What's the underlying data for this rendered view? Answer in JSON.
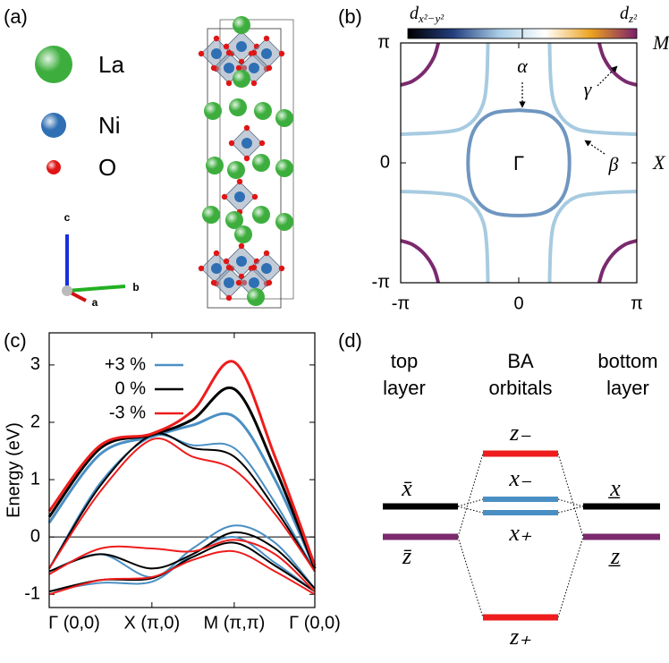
{
  "panels": {
    "a": {
      "label": "(a)",
      "legend": [
        {
          "text": "La",
          "color": "#3dae3d"
        },
        {
          "text": "Ni",
          "color": "#2f6fb3"
        },
        {
          "text": "O",
          "color": "#e01515"
        }
      ],
      "axes": [
        {
          "text": "c",
          "color": "#1a2fe0"
        },
        {
          "text": "b",
          "color": "#22b022"
        },
        {
          "text": "a",
          "color": "#d01010"
        }
      ]
    },
    "b": {
      "label": "(b)"
    },
    "c": {
      "label": "(c)"
    },
    "d": {
      "label": "(d)",
      "columns": [
        [
          "top",
          "layer"
        ],
        [
          "BA",
          "orbitals"
        ],
        [
          "bottom",
          "layer"
        ]
      ],
      "levels": [
        {
          "text": "x̄",
          "color": "#000000"
        },
        {
          "text": "z̄",
          "color": "#7b2a6e"
        },
        {
          "text": "z₋",
          "color": "#ee1c1c"
        },
        {
          "text": "x₋",
          "color": "#4a8fc4"
        },
        {
          "text": "x₊",
          "color": "#4a8fc4"
        },
        {
          "text": "z₊",
          "color": "#ee1c1c"
        },
        {
          "text": "x̲",
          "color": "#000000"
        },
        {
          "text": "z̲",
          "color": "#7b2a6e"
        }
      ]
    }
  },
  "chart_data": [
    {
      "type": "bands",
      "y_label": "Energy (eV)",
      "x": [
        0,
        0.58,
        1.16,
        1.62,
        2.09,
        2.55,
        3
      ],
      "xlim": [
        0,
        3
      ],
      "xticks": [
        {
          "value": 0,
          "label": "Γ (0,0)"
        },
        {
          "value": 1.16,
          "label": "X (π,0)"
        },
        {
          "value": 2.09,
          "label": "M (π,π)"
        },
        {
          "value": 3,
          "label": "Γ (0,0)"
        }
      ],
      "ylim": [
        -1.23,
        3.56
      ],
      "yticks": [
        -1,
        0,
        1,
        2,
        3
      ],
      "zero_line": true,
      "series": [
        {
          "name": "+3 %",
          "color": "#4a8fc4",
          "bands": [
            [
              0.25,
              1.45,
              1.75,
              1.95,
              2.1,
              1.0,
              -0.55
            ],
            [
              -0.55,
              0.95,
              1.75,
              1.6,
              1.55,
              0.6,
              -0.6
            ],
            [
              -0.6,
              -0.3,
              -0.7,
              -0.2,
              0.2,
              -0.1,
              -0.9
            ],
            [
              -0.95,
              -0.8,
              -0.78,
              -0.3,
              0.0,
              -0.45,
              -0.95
            ]
          ]
        },
        {
          "name": "0 %",
          "color": "#000000",
          "bands": [
            [
              0.35,
              1.55,
              1.78,
              2.05,
              2.58,
              1.2,
              -0.55
            ],
            [
              -0.55,
              0.9,
              1.78,
              1.55,
              1.4,
              0.5,
              -0.6
            ],
            [
              -0.6,
              -0.3,
              -0.55,
              -0.3,
              0.08,
              -0.2,
              -0.9
            ],
            [
              -0.95,
              -0.75,
              -0.72,
              -0.35,
              -0.1,
              -0.5,
              -0.95
            ]
          ]
        },
        {
          "name": "-3 %",
          "color": "#ee1c1c",
          "bands": [
            [
              0.45,
              1.6,
              1.8,
              2.2,
              3.05,
              1.4,
              -0.5
            ],
            [
              -0.55,
              0.8,
              1.7,
              1.4,
              1.17,
              0.4,
              -0.6
            ],
            [
              -0.65,
              -0.2,
              -0.2,
              -0.25,
              -0.05,
              -0.3,
              -0.95
            ],
            [
              -1.0,
              -0.75,
              -0.7,
              -0.4,
              -0.25,
              -0.6,
              -1.0
            ]
          ]
        }
      ]
    },
    {
      "type": "fermi-surface",
      "xlim": [
        -3.1416,
        3.1416
      ],
      "ylim": [
        -3.1416,
        3.1416
      ],
      "xticks": [
        {
          "value": -3.1416,
          "label": "-π"
        },
        0,
        {
          "value": 3.1416,
          "label": "π"
        }
      ],
      "yticks": [
        {
          "value": -3.1416,
          "label": "-π"
        },
        0,
        {
          "value": 3.1416,
          "label": "π"
        }
      ],
      "colorbar": {
        "colors": [
          "#000000",
          "#243f7e",
          "#a9cde6",
          "#ffffff",
          "#eba21f",
          "#7b1f6b"
        ],
        "labels": [
          {
            "base": "d",
            "sub": "x²−y²"
          },
          {
            "base": "d",
            "sub": "z²"
          }
        ]
      },
      "points": [
        {
          "text": "M",
          "x": 3.1416,
          "y": 3.1416,
          "color": "#e8201c"
        },
        {
          "text": "X",
          "x": 3.1416,
          "y": 0,
          "color": "#e8201c"
        },
        {
          "text": "Γ",
          "x": 0,
          "y": 0,
          "color": "#e8201c"
        }
      ],
      "annotations": [
        "α",
        "β",
        "γ"
      ],
      "curves": [
        {
          "color": "#6f96c0",
          "x": [
            0,
            0.63,
            1.01,
            1.26,
            1.35,
            1.26,
            1.01,
            0.63,
            0,
            -0.63,
            -1.01,
            -1.26,
            -1.35,
            -1.26,
            -1.01,
            -0.63,
            0
          ],
          "y": [
            1.38,
            1.32,
            1.1,
            0.69,
            0,
            -0.69,
            -1.1,
            -1.32,
            -1.38,
            -1.32,
            -1.1,
            -0.69,
            0,
            0.69,
            1.1,
            1.32,
            1.38
          ]
        },
        {
          "color": "#a7cbe0",
          "x": [
            -3.14,
            -2.2,
            -1.57,
            -1.19,
            -0.94,
            -0.85,
            -0.82
          ],
          "y": [
            0.75,
            0.79,
            0.88,
            1.13,
            1.57,
            2.2,
            3.14
          ]
        },
        {
          "color": "#a7cbe0",
          "x": [
            3.14,
            2.2,
            1.57,
            1.19,
            0.94,
            0.85,
            0.82
          ],
          "y": [
            0.75,
            0.79,
            0.88,
            1.13,
            1.57,
            2.2,
            3.14
          ]
        },
        {
          "color": "#a7cbe0",
          "x": [
            -3.14,
            -2.2,
            -1.57,
            -1.19,
            -0.94,
            -0.85,
            -0.82
          ],
          "y": [
            -0.75,
            -0.79,
            -0.88,
            -1.13,
            -1.57,
            -2.2,
            -3.14
          ]
        },
        {
          "color": "#a7cbe0",
          "x": [
            3.14,
            2.2,
            1.57,
            1.19,
            0.94,
            0.85,
            0.82
          ],
          "y": [
            -0.75,
            -0.79,
            -0.88,
            -1.13,
            -1.57,
            -2.2,
            -3.14
          ]
        },
        {
          "color": "#7b2a6e",
          "x": [
            2.14,
            2.26,
            2.51,
            2.83,
            3.14
          ],
          "y": [
            3.14,
            2.76,
            2.39,
            2.14,
            2.04
          ]
        },
        {
          "color": "#7b2a6e",
          "x": [
            -2.14,
            -2.26,
            -2.51,
            -2.83,
            -3.14
          ],
          "y": [
            3.14,
            2.76,
            2.39,
            2.14,
            2.04
          ]
        },
        {
          "color": "#7b2a6e",
          "x": [
            2.14,
            2.26,
            2.51,
            2.83,
            3.14
          ],
          "y": [
            -3.14,
            -2.76,
            -2.39,
            -2.14,
            -2.04
          ]
        },
        {
          "color": "#7b2a6e",
          "x": [
            -2.14,
            -2.26,
            -2.51,
            -2.83,
            -3.14
          ],
          "y": [
            -3.14,
            -2.76,
            -2.39,
            -2.14,
            -2.04
          ]
        }
      ]
    }
  ]
}
